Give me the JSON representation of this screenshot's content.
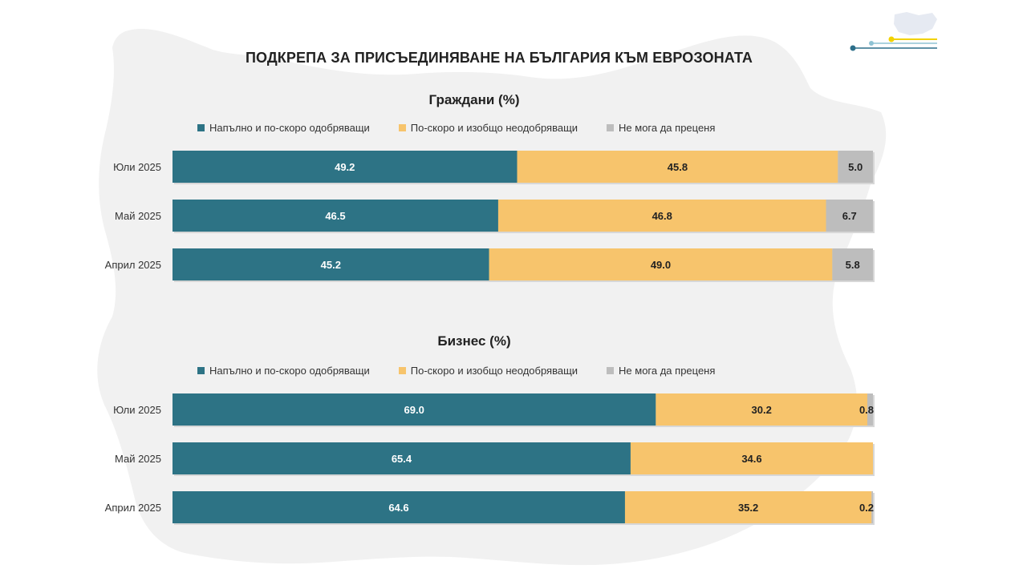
{
  "page_title": "ПОДКРЕПА ЗА ПРИСЪЕДИНЯВАНЕ НА БЪЛГАРИЯ КЪМ ЕВРОЗОНАТА",
  "colors": {
    "approve": "#2d7385",
    "disapprove": "#f7c46c",
    "unsure": "#bdbdbd",
    "background_map": "#f0f0f0"
  },
  "chart_data": [
    {
      "type": "bar",
      "orientation": "horizontal-stacked-100",
      "title": "Граждани (%)",
      "categories": [
        "Юли 2025",
        "Май 2025",
        "Април 2025"
      ],
      "series": [
        {
          "name": "Напълно и по-скоро одобряващи",
          "values": [
            49.2,
            46.5,
            45.2
          ],
          "labels": [
            "49.2",
            "46.5",
            "45.2"
          ]
        },
        {
          "name": "По-скоро и изобщо неодобряващи",
          "values": [
            45.8,
            46.8,
            49.0
          ],
          "labels": [
            "45.8",
            "46.8",
            "49.0"
          ]
        },
        {
          "name": "Не мога да преценя",
          "values": [
            5.0,
            6.7,
            5.8
          ],
          "labels": [
            "5.0",
            "6.7",
            "5.8"
          ]
        }
      ],
      "xlim": [
        0,
        100
      ],
      "legend_position": "top"
    },
    {
      "type": "bar",
      "orientation": "horizontal-stacked-100",
      "title": "Бизнес (%)",
      "categories": [
        "Юли 2025",
        "Май 2025",
        "Април 2025"
      ],
      "series": [
        {
          "name": "Напълно и по-скоро одобряващи",
          "values": [
            69.0,
            65.4,
            64.6
          ],
          "labels": [
            "69.0",
            "65.4",
            "64.6"
          ]
        },
        {
          "name": "По-скоро и изобщо неодобряващи",
          "values": [
            30.2,
            34.6,
            35.2
          ],
          "labels": [
            "30.2",
            "34.6",
            "35.2"
          ]
        },
        {
          "name": "Не мога да преценя",
          "values": [
            0.8,
            0.0,
            0.2
          ],
          "labels": [
            "0.8",
            "",
            "0.2"
          ]
        }
      ],
      "xlim": [
        0,
        100
      ],
      "legend_position": "top"
    }
  ]
}
